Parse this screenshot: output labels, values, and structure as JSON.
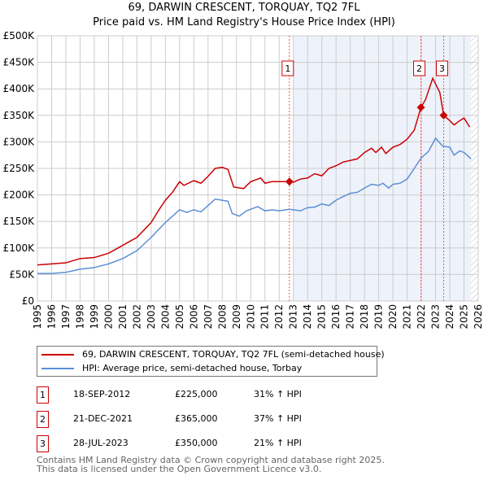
{
  "title": "69, DARWIN CRESCENT, TORQUAY, TQ2 7FL",
  "subtitle": "Price paid vs. HM Land Registry's House Price Index (HPI)",
  "chart_data": {
    "type": "line",
    "title": "69, DARWIN CRESCENT, TORQUAY, TQ2 7FL — Price paid vs. HM Land Registry's House Price Index (HPI)",
    "xlim": [
      1995,
      2026
    ],
    "ylim": [
      0,
      500000
    ],
    "x_ticks": [
      "1995",
      "1996",
      "1997",
      "1998",
      "1999",
      "2000",
      "2001",
      "2002",
      "2003",
      "2004",
      "2005",
      "2006",
      "2007",
      "2008",
      "2009",
      "2010",
      "2011",
      "2012",
      "2013",
      "2014",
      "2015",
      "2016",
      "2017",
      "2018",
      "2019",
      "2020",
      "2021",
      "2022",
      "2023",
      "2024",
      "2025",
      "2026"
    ],
    "y_ticks": [
      {
        "v": 0,
        "label": "£0"
      },
      {
        "v": 50000,
        "label": "£50K"
      },
      {
        "v": 100000,
        "label": "£100K"
      },
      {
        "v": 150000,
        "label": "£150K"
      },
      {
        "v": 200000,
        "label": "£200K"
      },
      {
        "v": 250000,
        "label": "£250K"
      },
      {
        "v": 300000,
        "label": "£300K"
      },
      {
        "v": 350000,
        "label": "£350K"
      },
      {
        "v": 400000,
        "label": "£400K"
      },
      {
        "v": 450000,
        "label": "£450K"
      },
      {
        "v": 500000,
        "label": "£500K"
      }
    ],
    "grid": true,
    "shaded_from": 2013,
    "hatched_from": 2025.5,
    "series": [
      {
        "name": "69, DARWIN CRESCENT, TORQUAY, TQ2 7FL (semi-detached house)",
        "color": "#cc0000",
        "x": [
          1995,
          1996,
          1997,
          1998,
          1999,
          2000,
          2001,
          2002,
          2003,
          2003.5,
          2004,
          2004.5,
          2005,
          2005.3,
          2006,
          2006.5,
          2007,
          2007.5,
          2008,
          2008.4,
          2008.8,
          2009.5,
          2010,
          2010.7,
          2011,
          2011.5,
          2012,
          2012.72,
          2013,
          2013.5,
          2014,
          2014.5,
          2015,
          2015.5,
          2016,
          2016.5,
          2017,
          2017.5,
          2018,
          2018.5,
          2018.8,
          2019.2,
          2019.5,
          2020,
          2020.5,
          2021,
          2021.5,
          2021.97,
          2022.3,
          2022.8,
          2023.3,
          2023.57,
          2024,
          2024.3,
          2024.7,
          2025,
          2025.4
        ],
        "y": [
          68000,
          70000,
          72000,
          80000,
          82000,
          90000,
          105000,
          120000,
          148000,
          170000,
          190000,
          205000,
          225000,
          218000,
          227000,
          222000,
          235000,
          250000,
          252000,
          248000,
          215000,
          212000,
          225000,
          232000,
          222000,
          225000,
          225000,
          225000,
          224000,
          230000,
          232000,
          240000,
          236000,
          250000,
          255000,
          262000,
          265000,
          268000,
          280000,
          288000,
          280000,
          290000,
          278000,
          290000,
          295000,
          305000,
          322000,
          365000,
          380000,
          420000,
          393000,
          350000,
          340000,
          332000,
          340000,
          345000,
          328000
        ]
      },
      {
        "name": "HPI: Average price, semi-detached house, Torbay",
        "color": "#5b8fd6",
        "x": [
          1995,
          1996,
          1997,
          1998,
          1999,
          2000,
          2001,
          2002,
          2003,
          2004,
          2005,
          2005.5,
          2006,
          2006.5,
          2007,
          2007.5,
          2008,
          2008.4,
          2008.7,
          2009.2,
          2009.7,
          2010.5,
          2011,
          2011.5,
          2012,
          2012.7,
          2013.5,
          2014,
          2014.5,
          2015,
          2015.5,
          2016,
          2016.5,
          2017,
          2017.5,
          2018,
          2018.5,
          2019,
          2019.3,
          2019.7,
          2020,
          2020.5,
          2021,
          2021.5,
          2022,
          2022.5,
          2023,
          2023.5,
          2024,
          2024.3,
          2024.7,
          2025,
          2025.5
        ],
        "y": [
          52000,
          52000,
          54000,
          60000,
          63000,
          70000,
          80000,
          95000,
          120000,
          148000,
          172000,
          167000,
          172000,
          168000,
          180000,
          192000,
          190000,
          188000,
          165000,
          160000,
          170000,
          178000,
          170000,
          172000,
          170000,
          173000,
          170000,
          176000,
          177000,
          183000,
          180000,
          190000,
          197000,
          203000,
          205000,
          213000,
          220000,
          218000,
          222000,
          213000,
          220000,
          222000,
          230000,
          250000,
          270000,
          282000,
          307000,
          292000,
          290000,
          275000,
          283000,
          280000,
          268000
        ]
      }
    ],
    "sales": [
      {
        "n": "1",
        "x": 2012.72,
        "y": 225000,
        "date": "18-SEP-2012",
        "price": "£225,000",
        "hpi": "31% ↑ HPI"
      },
      {
        "n": "2",
        "x": 2021.97,
        "y": 365000,
        "date": "21-DEC-2021",
        "price": "£365,000",
        "hpi": "37% ↑ HPI"
      },
      {
        "n": "3",
        "x": 2023.57,
        "y": 350000,
        "date": "28-JUL-2023",
        "price": "£350,000",
        "hpi": "21% ↑ HPI"
      }
    ]
  },
  "footer": [
    "Contains HM Land Registry data © Crown copyright and database right 2025.",
    "This data is licensed under the Open Government Licence v3.0."
  ]
}
